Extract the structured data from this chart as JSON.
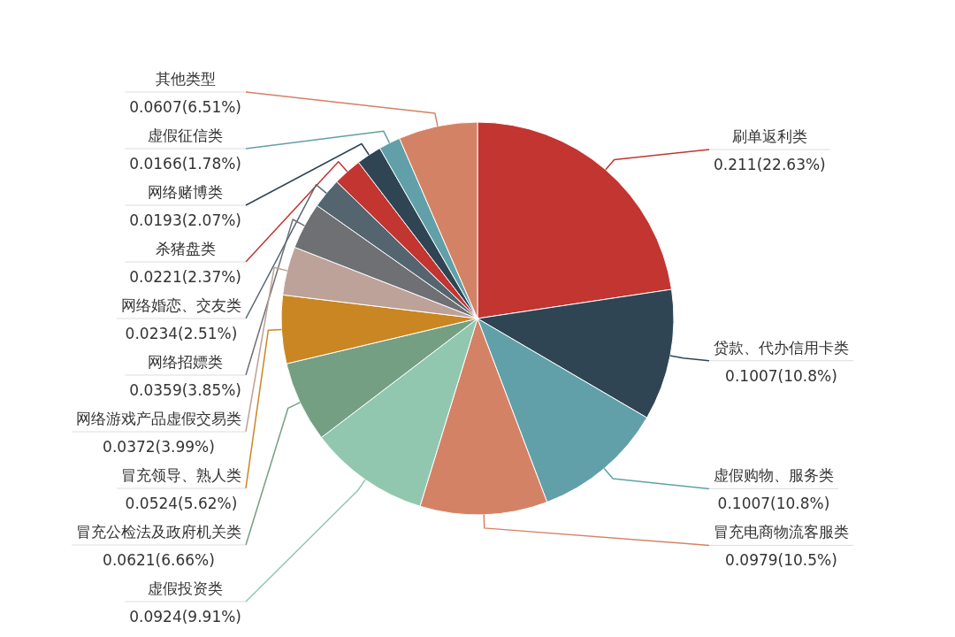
{
  "chart_data": {
    "type": "pie",
    "categories": [
      "刷单返利类",
      "贷款、代办信用卡类",
      "虚假购物、服务类",
      "冒充电商物流客服类",
      "虚假投资类",
      "冒充公检法及政府机关类",
      "冒充领导、熟人类",
      "网络游戏产品虚假交易类",
      "网络招嫖类",
      "网络婚恋、交友类",
      "杀猪盘类",
      "网络赌博类",
      "虚假征信类",
      "其他类型"
    ],
    "values": [
      0.211,
      0.1007,
      0.1007,
      0.0979,
      0.0924,
      0.0621,
      0.0524,
      0.0372,
      0.0359,
      0.0234,
      0.0221,
      0.0193,
      0.0166,
      0.0607
    ],
    "colors": [
      "#c23531",
      "#2f4554",
      "#61a0a8",
      "#d48265",
      "#91c7ae",
      "#749f83",
      "#ca8622",
      "#bda29a",
      "#6e7074",
      "#546570",
      "#c23531",
      "#2f4554",
      "#61a0a8",
      "#d48265"
    ],
    "value_labels": [
      "0.211(22.63%)",
      "0.1007(10.8%)",
      "0.1007(10.8%)",
      "0.0979(10.5%)",
      "0.0924(9.91%)",
      "0.0621(6.66%)",
      "0.0524(5.62%)",
      "0.0372(3.99%)",
      "0.0359(3.85%)",
      "0.0234(2.51%)",
      "0.0221(2.37%)",
      "0.0193(2.07%)",
      "0.0166(1.78%)",
      "0.0607(6.51%)"
    ]
  }
}
